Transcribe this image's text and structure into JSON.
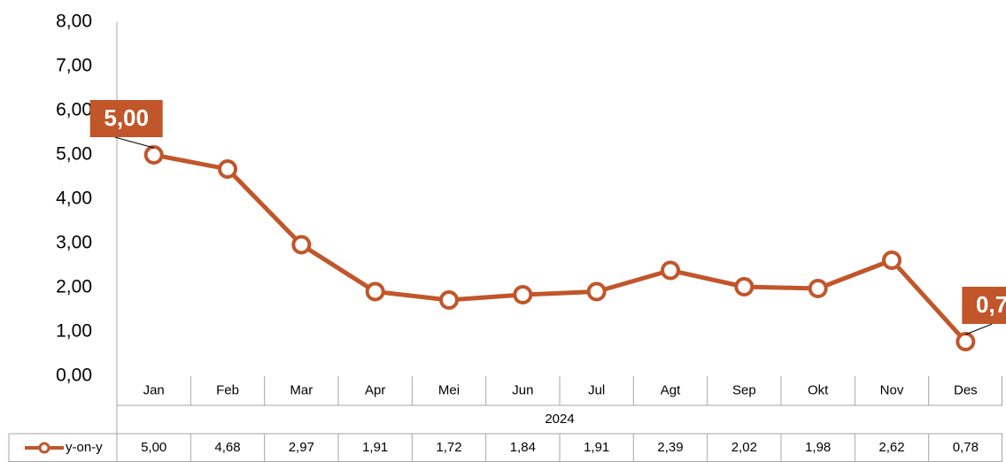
{
  "chart_data": {
    "type": "line",
    "categories": [
      "Jan",
      "Feb",
      "Mar",
      "Apr",
      "Mei",
      "Jun",
      "Jul",
      "Agt",
      "Sep",
      "Okt",
      "Nov",
      "Des"
    ],
    "x_group": "2024",
    "series": [
      {
        "name": "y-on-y",
        "color": "#c0562a",
        "values": [
          5.0,
          4.68,
          2.97,
          1.91,
          1.72,
          1.84,
          1.91,
          2.39,
          2.02,
          1.98,
          2.62,
          0.78
        ],
        "value_labels": [
          "5,00",
          "4,68",
          "2,97",
          "1,91",
          "1,72",
          "1,84",
          "1,91",
          "2,39",
          "2,02",
          "1,98",
          "2,62",
          "0,78"
        ]
      }
    ],
    "ylim": [
      0,
      8
    ],
    "yticks": [
      {
        "value": 0,
        "label": "0,00"
      },
      {
        "value": 1,
        "label": "1,00"
      },
      {
        "value": 2,
        "label": "2,00"
      },
      {
        "value": 3,
        "label": "3,00"
      },
      {
        "value": 4,
        "label": "4,00"
      },
      {
        "value": 5,
        "label": "5,00"
      },
      {
        "value": 6,
        "label": "6,00"
      },
      {
        "value": 7,
        "label": "7,00"
      },
      {
        "value": 8,
        "label": "8,00"
      }
    ],
    "grid": false
  }
}
